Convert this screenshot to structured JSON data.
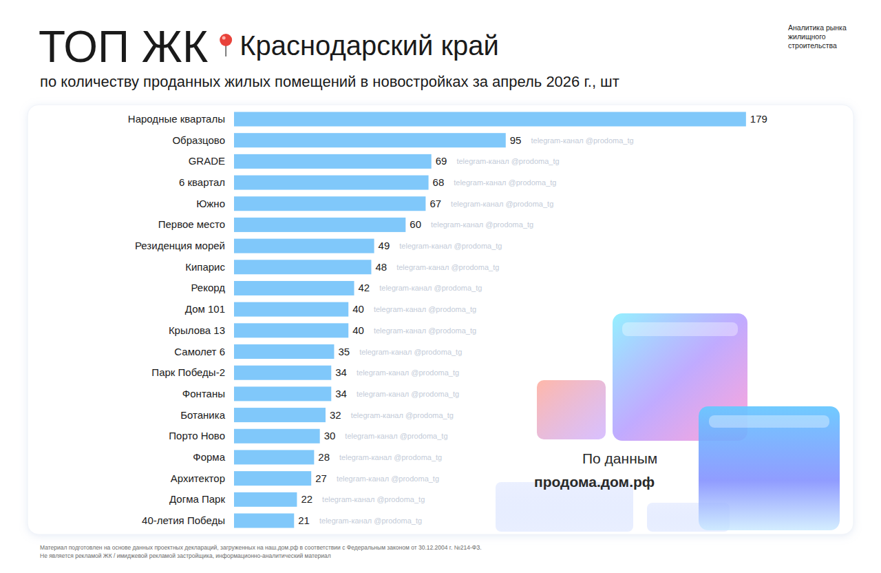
{
  "chart_data": {
    "type": "bar",
    "orientation": "horizontal",
    "title": "ТОП ЖК",
    "region": "Краснодарский край",
    "subtitle": "по количеству проданных жилых помещений в новостройках за апрель 2026 г., шт",
    "header_note": [
      "Аналитика рынка",
      "жилищного",
      "строительства"
    ],
    "watermark": "telegram-канал @prodoma_tg",
    "source_label": "По данным",
    "source_name": "продома.дом.рф",
    "footnotes": [
      "Материал подготовлен на основе данных проектных деклараций, загруженных на наш.дом.рф в соответствии с Федеральным законом от 30.12.2004 г. №214-ФЗ.",
      "Не является рекламой ЖК / имиджевой рекламой застройщика, информационно-аналитический материал"
    ],
    "categories": [
      "Народные кварталы",
      "Образцово",
      "GRADE",
      "6 квартал",
      "Южно",
      "Первое место",
      "Резиденция морей",
      "Кипарис",
      "Рекорд",
      "Дом 101",
      "Крылова 13",
      "Самолет 6",
      "Парк Победы-2",
      "Фонтаны",
      "Ботаника",
      "Порто Ново",
      "Форма",
      "Архитектор",
      "Догма Парк",
      "40-летия Победы"
    ],
    "values": [
      179,
      95,
      69,
      68,
      67,
      60,
      49,
      48,
      42,
      40,
      40,
      35,
      34,
      34,
      32,
      30,
      28,
      27,
      22,
      21
    ],
    "color": "#80c8fa",
    "xlim": [
      0,
      180
    ],
    "tick_labels": false,
    "grid": false,
    "data_labels": true
  }
}
